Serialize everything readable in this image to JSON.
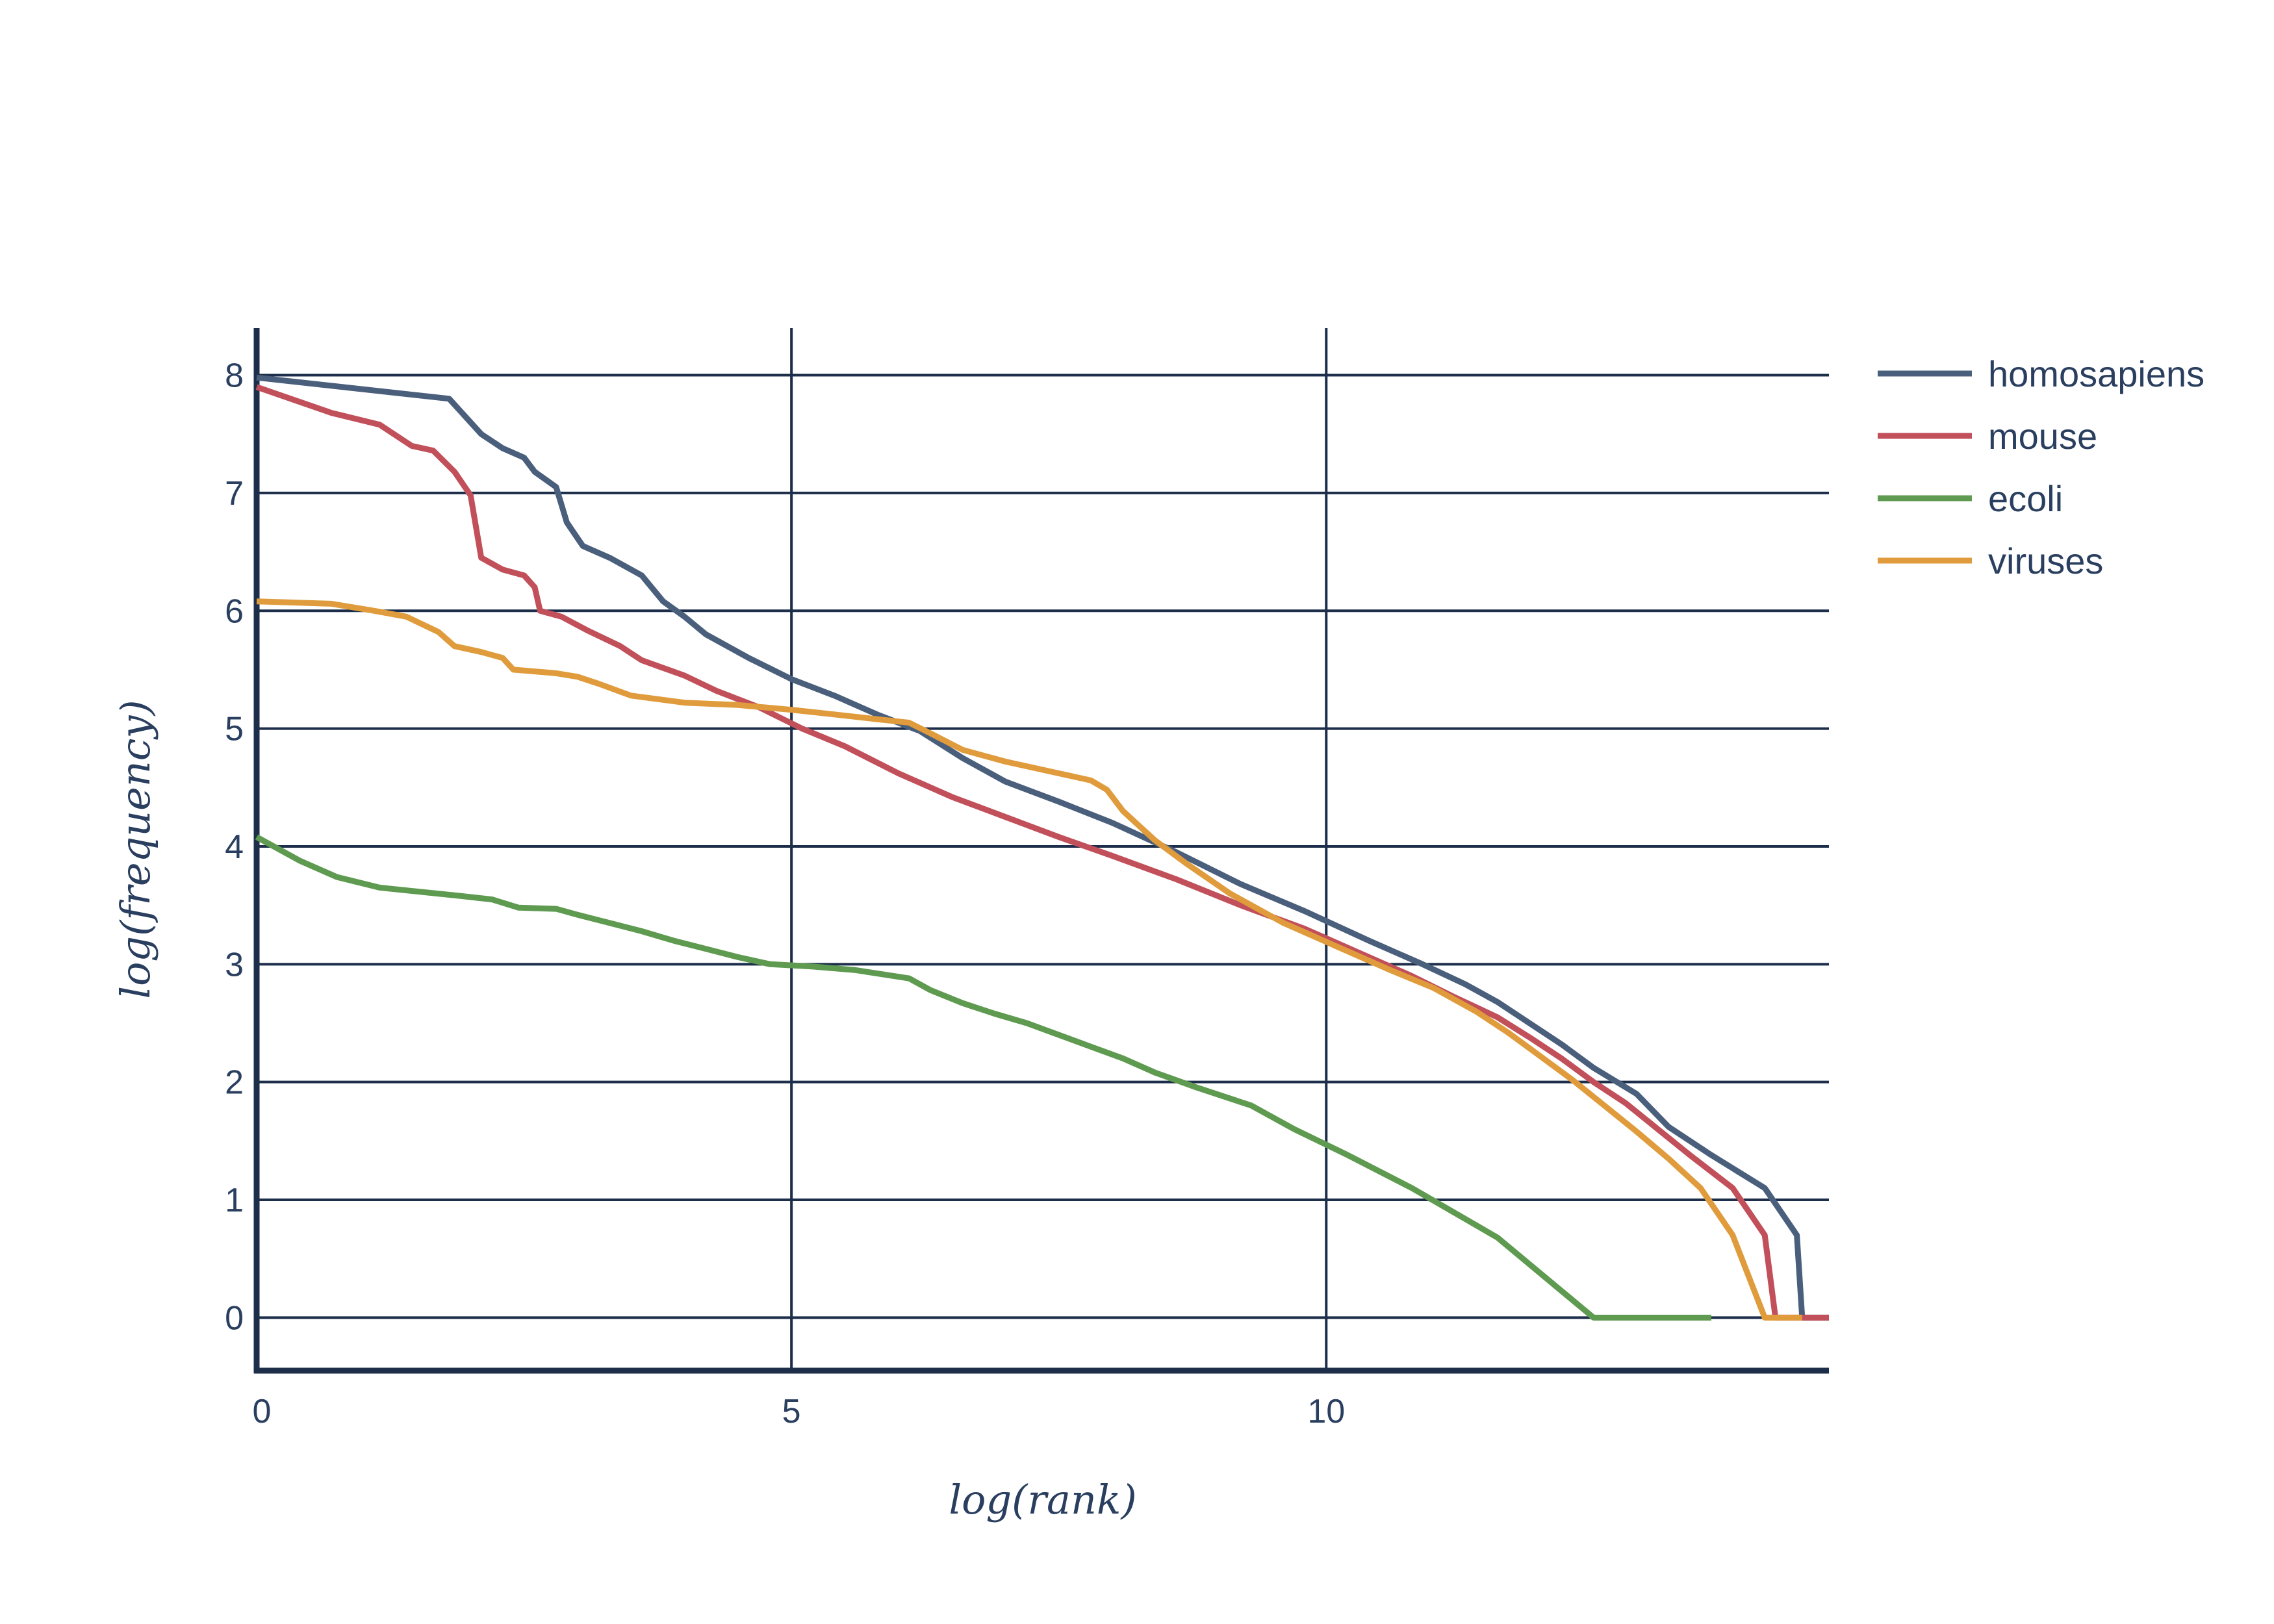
{
  "chart_data": {
    "type": "line",
    "xlabel": "log(rank)",
    "ylabel": "log(frequency)",
    "xlim": [
      0,
      14.7
    ],
    "ylim": [
      -0.45,
      8.4
    ],
    "x_ticks": [
      0,
      5,
      10
    ],
    "y_ticks": [
      0,
      1,
      2,
      3,
      4,
      5,
      6,
      7,
      8
    ],
    "grid": true,
    "legend_position": "top-right",
    "series": [
      {
        "name": "homosapiens",
        "color": "#4a5f7c",
        "points": [
          [
            0,
            7.98
          ],
          [
            1.8,
            7.8
          ],
          [
            2.1,
            7.5
          ],
          [
            2.3,
            7.38
          ],
          [
            2.5,
            7.3
          ],
          [
            2.6,
            7.18
          ],
          [
            2.8,
            7.05
          ],
          [
            2.9,
            6.75
          ],
          [
            3.05,
            6.55
          ],
          [
            3.3,
            6.45
          ],
          [
            3.6,
            6.3
          ],
          [
            3.8,
            6.08
          ],
          [
            4.0,
            5.95
          ],
          [
            4.2,
            5.8
          ],
          [
            4.6,
            5.6
          ],
          [
            5.0,
            5.42
          ],
          [
            5.4,
            5.28
          ],
          [
            5.8,
            5.12
          ],
          [
            6.2,
            4.98
          ],
          [
            6.6,
            4.75
          ],
          [
            7.0,
            4.55
          ],
          [
            7.5,
            4.38
          ],
          [
            8.0,
            4.2
          ],
          [
            8.6,
            3.95
          ],
          [
            9.2,
            3.68
          ],
          [
            9.8,
            3.45
          ],
          [
            10.4,
            3.2
          ],
          [
            10.9,
            3.0
          ],
          [
            11.3,
            2.83
          ],
          [
            11.6,
            2.68
          ],
          [
            11.9,
            2.5
          ],
          [
            12.2,
            2.32
          ],
          [
            12.5,
            2.12
          ],
          [
            12.9,
            1.9
          ],
          [
            13.2,
            1.62
          ],
          [
            13.6,
            1.38
          ],
          [
            14.1,
            1.1
          ],
          [
            14.4,
            0.7
          ],
          [
            14.45,
            0.0
          ],
          [
            14.7,
            0.0
          ]
        ]
      },
      {
        "name": "mouse",
        "color": "#c1505a",
        "points": [
          [
            0,
            7.9
          ],
          [
            0.7,
            7.68
          ],
          [
            1.15,
            7.58
          ],
          [
            1.45,
            7.4
          ],
          [
            1.65,
            7.36
          ],
          [
            1.85,
            7.18
          ],
          [
            2.0,
            6.98
          ],
          [
            2.1,
            6.45
          ],
          [
            2.3,
            6.35
          ],
          [
            2.5,
            6.3
          ],
          [
            2.6,
            6.2
          ],
          [
            2.65,
            6.0
          ],
          [
            2.85,
            5.95
          ],
          [
            3.1,
            5.83
          ],
          [
            3.4,
            5.7
          ],
          [
            3.6,
            5.58
          ],
          [
            4.0,
            5.45
          ],
          [
            4.3,
            5.32
          ],
          [
            4.7,
            5.18
          ],
          [
            5.1,
            5.0
          ],
          [
            5.5,
            4.85
          ],
          [
            6.0,
            4.62
          ],
          [
            6.5,
            4.42
          ],
          [
            7.0,
            4.25
          ],
          [
            7.5,
            4.08
          ],
          [
            8.0,
            3.92
          ],
          [
            8.6,
            3.72
          ],
          [
            9.2,
            3.5
          ],
          [
            9.8,
            3.3
          ],
          [
            10.3,
            3.1
          ],
          [
            10.8,
            2.9
          ],
          [
            11.2,
            2.72
          ],
          [
            11.6,
            2.55
          ],
          [
            11.9,
            2.38
          ],
          [
            12.2,
            2.2
          ],
          [
            12.5,
            2.0
          ],
          [
            12.8,
            1.82
          ],
          [
            13.1,
            1.6
          ],
          [
            13.4,
            1.38
          ],
          [
            13.8,
            1.1
          ],
          [
            14.1,
            0.7
          ],
          [
            14.2,
            0.0
          ],
          [
            14.7,
            0.0
          ]
        ]
      },
      {
        "name": "ecoli",
        "color": "#5e9a4f",
        "points": [
          [
            0,
            4.08
          ],
          [
            0.4,
            3.88
          ],
          [
            0.75,
            3.74
          ],
          [
            1.15,
            3.65
          ],
          [
            1.9,
            3.58
          ],
          [
            2.2,
            3.55
          ],
          [
            2.45,
            3.48
          ],
          [
            2.8,
            3.47
          ],
          [
            3.0,
            3.42
          ],
          [
            3.3,
            3.35
          ],
          [
            3.6,
            3.28
          ],
          [
            3.9,
            3.2
          ],
          [
            4.2,
            3.13
          ],
          [
            4.5,
            3.06
          ],
          [
            4.8,
            3.0
          ],
          [
            5.2,
            2.98
          ],
          [
            5.6,
            2.95
          ],
          [
            6.1,
            2.88
          ],
          [
            6.3,
            2.78
          ],
          [
            6.6,
            2.67
          ],
          [
            6.9,
            2.58
          ],
          [
            7.2,
            2.5
          ],
          [
            7.5,
            2.4
          ],
          [
            7.8,
            2.3
          ],
          [
            8.1,
            2.2
          ],
          [
            8.4,
            2.08
          ],
          [
            8.8,
            1.95
          ],
          [
            9.3,
            1.8
          ],
          [
            9.7,
            1.6
          ],
          [
            10.2,
            1.38
          ],
          [
            10.8,
            1.1
          ],
          [
            11.6,
            0.68
          ],
          [
            12.5,
            0.0
          ],
          [
            13.6,
            0.0
          ]
        ]
      },
      {
        "name": "viruses",
        "color": "#e09c3c",
        "points": [
          [
            0,
            6.08
          ],
          [
            0.7,
            6.06
          ],
          [
            1.1,
            6.0
          ],
          [
            1.4,
            5.95
          ],
          [
            1.7,
            5.82
          ],
          [
            1.85,
            5.7
          ],
          [
            2.1,
            5.65
          ],
          [
            2.3,
            5.6
          ],
          [
            2.4,
            5.5
          ],
          [
            2.8,
            5.47
          ],
          [
            3.0,
            5.44
          ],
          [
            3.2,
            5.38
          ],
          [
            3.5,
            5.28
          ],
          [
            4.0,
            5.22
          ],
          [
            4.5,
            5.2
          ],
          [
            5.0,
            5.16
          ],
          [
            5.4,
            5.12
          ],
          [
            5.8,
            5.08
          ],
          [
            6.1,
            5.05
          ],
          [
            6.3,
            4.96
          ],
          [
            6.6,
            4.82
          ],
          [
            7.0,
            4.72
          ],
          [
            7.5,
            4.62
          ],
          [
            7.8,
            4.56
          ],
          [
            7.95,
            4.48
          ],
          [
            8.1,
            4.3
          ],
          [
            8.4,
            4.05
          ],
          [
            8.7,
            3.85
          ],
          [
            9.1,
            3.6
          ],
          [
            9.6,
            3.35
          ],
          [
            10.1,
            3.15
          ],
          [
            10.6,
            2.95
          ],
          [
            11.0,
            2.8
          ],
          [
            11.4,
            2.6
          ],
          [
            11.7,
            2.42
          ],
          [
            12.0,
            2.22
          ],
          [
            12.3,
            2.02
          ],
          [
            12.6,
            1.8
          ],
          [
            12.9,
            1.58
          ],
          [
            13.2,
            1.35
          ],
          [
            13.5,
            1.1
          ],
          [
            13.8,
            0.7
          ],
          [
            14.1,
            0.0
          ],
          [
            14.45,
            0.0
          ]
        ]
      }
    ]
  }
}
